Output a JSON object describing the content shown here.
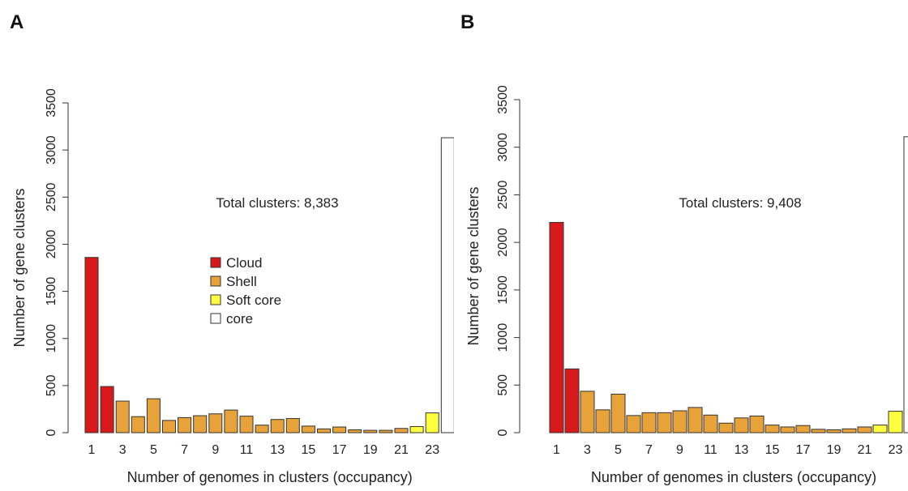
{
  "panels": [
    {
      "letter": "A"
    },
    {
      "letter": "B"
    }
  ],
  "chart_data": [
    {
      "type": "bar",
      "panel": "A",
      "annotation": "Total clusters: 8,383",
      "xlabel": "Number of genomes in clusters (occupancy)",
      "ylabel": "Number of gene clusters",
      "ylim": [
        0,
        3500
      ],
      "yticks": [
        0,
        500,
        1000,
        1500,
        2000,
        2500,
        3000,
        3500
      ],
      "xtick_labels": [
        "1",
        "3",
        "5",
        "7",
        "9",
        "11",
        "13",
        "15",
        "17",
        "19",
        "21",
        "23"
      ],
      "categories": [
        1,
        2,
        3,
        4,
        5,
        6,
        7,
        8,
        9,
        10,
        11,
        12,
        13,
        14,
        15,
        16,
        17,
        18,
        19,
        20,
        21,
        22,
        23,
        24
      ],
      "values": [
        1860,
        490,
        335,
        170,
        360,
        130,
        160,
        180,
        200,
        240,
        175,
        80,
        140,
        150,
        70,
        40,
        60,
        30,
        25,
        25,
        45,
        65,
        210,
        3130
      ],
      "groups": [
        "Cloud",
        "Cloud",
        "Shell",
        "Shell",
        "Shell",
        "Shell",
        "Shell",
        "Shell",
        "Shell",
        "Shell",
        "Shell",
        "Shell",
        "Shell",
        "Shell",
        "Shell",
        "Shell",
        "Shell",
        "Shell",
        "Shell",
        "Shell",
        "Shell",
        "Soft core",
        "Soft core",
        "core"
      ],
      "colors": {
        "Cloud": "#d7191c",
        "Shell": "#e8a23a",
        "Soft core": "#ffff40",
        "core": "#ffffff"
      },
      "legend": {
        "position": "center",
        "entries": [
          "Cloud",
          "Shell",
          "Soft core",
          "core"
        ]
      },
      "grid": false
    },
    {
      "type": "bar",
      "panel": "B",
      "annotation": "Total clusters: 9,408",
      "xlabel": "Number of genomes in clusters (occupancy)",
      "ylabel": "Number of gene clusters",
      "ylim": [
        0,
        3500
      ],
      "yticks": [
        0,
        500,
        1000,
        1500,
        2000,
        2500,
        3000,
        3500
      ],
      "xtick_labels": [
        "1",
        "3",
        "5",
        "7",
        "9",
        "11",
        "13",
        "15",
        "17",
        "19",
        "21",
        "23"
      ],
      "categories": [
        1,
        2,
        3,
        4,
        5,
        6,
        7,
        8,
        9,
        10,
        11,
        12,
        13,
        14,
        15,
        16,
        17,
        18,
        19,
        20,
        21,
        22,
        23,
        24
      ],
      "values": [
        2210,
        670,
        435,
        240,
        405,
        180,
        210,
        210,
        230,
        265,
        185,
        100,
        155,
        175,
        80,
        60,
        75,
        35,
        30,
        40,
        60,
        80,
        225,
        3110
      ],
      "groups": [
        "Cloud",
        "Cloud",
        "Shell",
        "Shell",
        "Shell",
        "Shell",
        "Shell",
        "Shell",
        "Shell",
        "Shell",
        "Shell",
        "Shell",
        "Shell",
        "Shell",
        "Shell",
        "Shell",
        "Shell",
        "Shell",
        "Shell",
        "Shell",
        "Shell",
        "Soft core",
        "Soft core",
        "core"
      ],
      "colors": {
        "Cloud": "#d7191c",
        "Shell": "#e8a23a",
        "Soft core": "#ffff40",
        "core": "#ffffff"
      },
      "grid": false
    }
  ]
}
